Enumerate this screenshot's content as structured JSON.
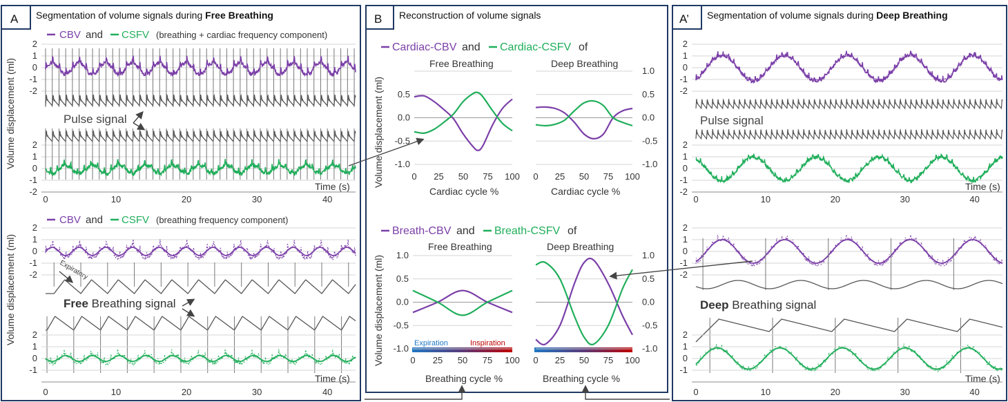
{
  "panels": {
    "A": {
      "letter": "A",
      "title_prefix": "Segmentation of volume signals during ",
      "title_bold": "Free Breathing",
      "top_legend": {
        "cbv": "CBV",
        "and": "and",
        "csfv": "CSFV",
        "note": "(breathing + cardiac frequency component)"
      },
      "pulse_label": "Pulse signal",
      "bottom_legend": {
        "cbv": "CBV",
        "and": "and",
        "csfv": "CSFV",
        "note": "(breathing frequency component)"
      },
      "expiratory_label": "Expiratory",
      "breathing_bold": "Free",
      "breathing_rest": " Breathing signal",
      "ylabel": "Volume displacement (ml)",
      "xlabel": "Time (s)",
      "xticks": [
        "0",
        "10",
        "20",
        "30",
        "40"
      ],
      "yticks": [
        "2",
        "1",
        "0",
        "-1",
        "-2"
      ],
      "yticks_upper": [
        "2",
        "1",
        "0",
        "-1",
        "-2"
      ]
    },
    "B": {
      "letter": "B",
      "title": "Reconstruction of volume signals",
      "cardiac_legend": {
        "cbv": "Cardiac-CBV",
        "and": "and",
        "csfv": "Cardiac-CSFV",
        "of": "of"
      },
      "breath_legend": {
        "cbv": "Breath-CBV",
        "and": "and",
        "csfv": "Breath-CSFV",
        "of": "of"
      },
      "free_title": "Free Breathing",
      "deep_title": "Deep Breathing",
      "cardiac_xlabel": "Cardiac cycle %",
      "breath_xlabel": "Breathing cycle %",
      "ylabel": "Volume displacement (ml)",
      "expiration": "Expiration",
      "inspiration": "Inspiration",
      "xticks": [
        "0",
        "25",
        "50",
        "75",
        "100"
      ],
      "yticks": [
        "1.0",
        "0.5",
        "0.0",
        "-0.5",
        "-1.0"
      ],
      "yticks_card_left": [
        "0.5",
        "0.0",
        "-0.5",
        "-1.0"
      ]
    },
    "A2": {
      "letter": "A’",
      "title_prefix": "Segmentation of volume signals during ",
      "title_bold": "Deep Breathing",
      "pulse_label": "Pulse signal",
      "breathing_bold": "Deep",
      "breathing_rest": " Breathing signal",
      "xlabel": "Time (s)",
      "xticks": [
        "0",
        "10",
        "20",
        "30",
        "40"
      ],
      "yticks": [
        "2",
        "1",
        "0",
        "-1",
        "-2"
      ]
    }
  },
  "colors": {
    "cbv": "#7b3fa8",
    "csfv": "#1fae5a",
    "signal": "#555555",
    "frame": "#1f3864",
    "expiration": "#1f77c4",
    "inspiration": "#c00000"
  },
  "chart_data": [
    {
      "type": "line",
      "panel": "A-top",
      "x_range": [
        0,
        44
      ],
      "ylim": [
        -2,
        2
      ],
      "series": [
        {
          "name": "CBV",
          "x": [
            0,
            44
          ],
          "values": [
            0,
            0
          ]
        },
        {
          "name": "CSFV",
          "x": [
            0,
            44
          ],
          "values": [
            0,
            0
          ]
        }
      ],
      "note_freq": {
        "cardiac_hz": 1.05,
        "breath_period_s": 3.8
      }
    },
    {
      "type": "line",
      "panel": "B-cardiac-free",
      "x": [
        0,
        10,
        20,
        30,
        40,
        50,
        60,
        65,
        70,
        80,
        90,
        100
      ],
      "ylim": [
        -1,
        1
      ],
      "series": [
        {
          "name": "Cardiac-CBV",
          "values": [
            0.45,
            0.47,
            0.35,
            0.18,
            -0.02,
            -0.35,
            -0.62,
            -0.7,
            -0.6,
            -0.15,
            0.2,
            0.4
          ]
        },
        {
          "name": "Cardiac-CSFV",
          "values": [
            -0.3,
            -0.33,
            -0.25,
            -0.1,
            0.08,
            0.35,
            0.52,
            0.54,
            0.45,
            0.15,
            -0.12,
            -0.28
          ]
        }
      ]
    },
    {
      "type": "line",
      "panel": "B-cardiac-deep",
      "x": [
        0,
        10,
        20,
        30,
        40,
        50,
        60,
        70,
        80,
        90,
        100
      ],
      "ylim": [
        -1,
        1
      ],
      "series": [
        {
          "name": "Cardiac-CBV",
          "values": [
            0.22,
            0.23,
            0.2,
            0.1,
            -0.1,
            -0.35,
            -0.45,
            -0.35,
            0.0,
            0.15,
            0.2
          ]
        },
        {
          "name": "Cardiac-CSFV",
          "values": [
            -0.15,
            -0.17,
            -0.14,
            -0.05,
            0.15,
            0.32,
            0.36,
            0.26,
            0.0,
            -0.1,
            -0.17
          ]
        }
      ]
    },
    {
      "type": "line",
      "panel": "B-breath-free",
      "x": [
        0,
        25,
        50,
        75,
        100
      ],
      "ylim": [
        -1,
        1
      ],
      "series": [
        {
          "name": "Breath-CBV",
          "values": [
            -0.22,
            0.0,
            0.25,
            0.0,
            -0.22
          ]
        },
        {
          "name": "Breath-CSFV",
          "values": [
            0.25,
            0.0,
            -0.28,
            0.0,
            0.25
          ]
        }
      ]
    },
    {
      "type": "line",
      "panel": "B-breath-deep",
      "x": [
        0,
        10,
        25,
        40,
        50,
        60,
        75,
        90,
        100
      ],
      "ylim": [
        -1,
        1
      ],
      "series": [
        {
          "name": "Breath-CBV",
          "values": [
            -0.8,
            -0.9,
            -0.5,
            0.4,
            0.85,
            0.9,
            0.4,
            -0.3,
            -0.7
          ]
        },
        {
          "name": "Breath-CSFV",
          "values": [
            0.8,
            0.85,
            0.5,
            -0.3,
            -0.75,
            -0.9,
            -0.5,
            0.3,
            0.7
          ]
        }
      ]
    }
  ]
}
